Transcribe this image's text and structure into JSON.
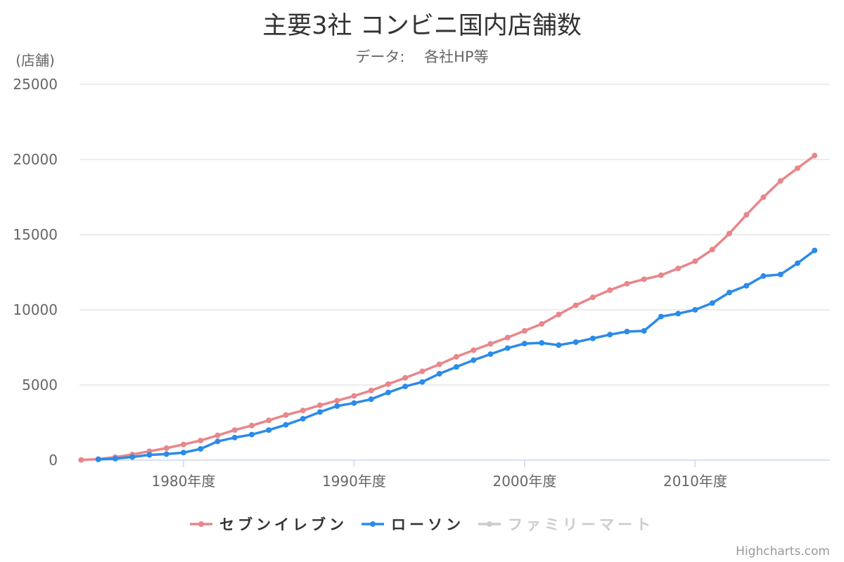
{
  "chart_data": {
    "type": "line",
    "title": "主要3社 コンビニ国内店舗数",
    "subtitle": "データ: 　各社HP等",
    "ylabel": "(店舗)",
    "ylim": [
      0,
      25000
    ],
    "y_ticks": [
      0,
      5000,
      10000,
      15000,
      20000,
      25000
    ],
    "y_tick_labels": [
      "0",
      "5000",
      "10000",
      "15000",
      "20000",
      "25000"
    ],
    "xlim": [
      1973.9,
      2017.9
    ],
    "x_ticks": [
      1980,
      1990,
      2000,
      2010
    ],
    "x_tick_labels": [
      "1980年度",
      "1990年度",
      "2000年度",
      "2010年度"
    ],
    "grid": true,
    "legend_position": "bottom-center",
    "series": [
      {
        "name": "セブンイレブン",
        "color": "#e8868a",
        "visible": true,
        "x": [
          1974,
          1975,
          1976,
          1977,
          1978,
          1979,
          1980,
          1981,
          1982,
          1983,
          1984,
          1985,
          1986,
          1987,
          1988,
          1989,
          1990,
          1991,
          1992,
          1993,
          1994,
          1995,
          1996,
          1997,
          1998,
          1999,
          2000,
          2001,
          2002,
          2003,
          2004,
          2005,
          2006,
          2007,
          2008,
          2009,
          2010,
          2011,
          2012,
          2013,
          2014,
          2015,
          2016,
          2017
        ],
        "values": [
          15,
          69,
          199,
          375,
          591,
          801,
          1040,
          1306,
          1643,
          1999,
          2299,
          2651,
          2999,
          3304,
          3653,
          3954,
          4270,
          4629,
          5058,
          5475,
          5905,
          6373,
          6875,
          7314,
          7732,
          8153,
          8602,
          9060,
          9690,
          10303,
          10826,
          11310,
          11735,
          12034,
          12298,
          12753,
          13232,
          14005,
          15072,
          16319,
          17491,
          18572,
          19422,
          20260
        ]
      },
      {
        "name": "ローソン",
        "color": "#2b8be8",
        "visible": true,
        "x": [
          1975,
          1976,
          1977,
          1978,
          1979,
          1980,
          1981,
          1982,
          1983,
          1984,
          1985,
          1986,
          1987,
          1988,
          1989,
          1990,
          1991,
          1992,
          1993,
          1994,
          1995,
          1996,
          1997,
          1998,
          1999,
          2000,
          2001,
          2002,
          2003,
          2004,
          2005,
          2006,
          2007,
          2008,
          2009,
          2010,
          2011,
          2012,
          2013,
          2014,
          2015,
          2016,
          2017
        ],
        "values": [
          50,
          100,
          210,
          350,
          400,
          500,
          750,
          1250,
          1500,
          1700,
          2000,
          2350,
          2750,
          3200,
          3600,
          3800,
          4050,
          4500,
          4900,
          5200,
          5750,
          6200,
          6650,
          7050,
          7450,
          7750,
          7800,
          7650,
          7850,
          8100,
          8350,
          8550,
          8600,
          9550,
          9750,
          10000,
          10450,
          11150,
          11600,
          12250,
          12350,
          13100,
          13950
        ]
      },
      {
        "name": "ファミリーマート",
        "color": "#cccccc",
        "visible": false,
        "x": [],
        "values": []
      }
    ],
    "credits": "Highcharts.com"
  }
}
